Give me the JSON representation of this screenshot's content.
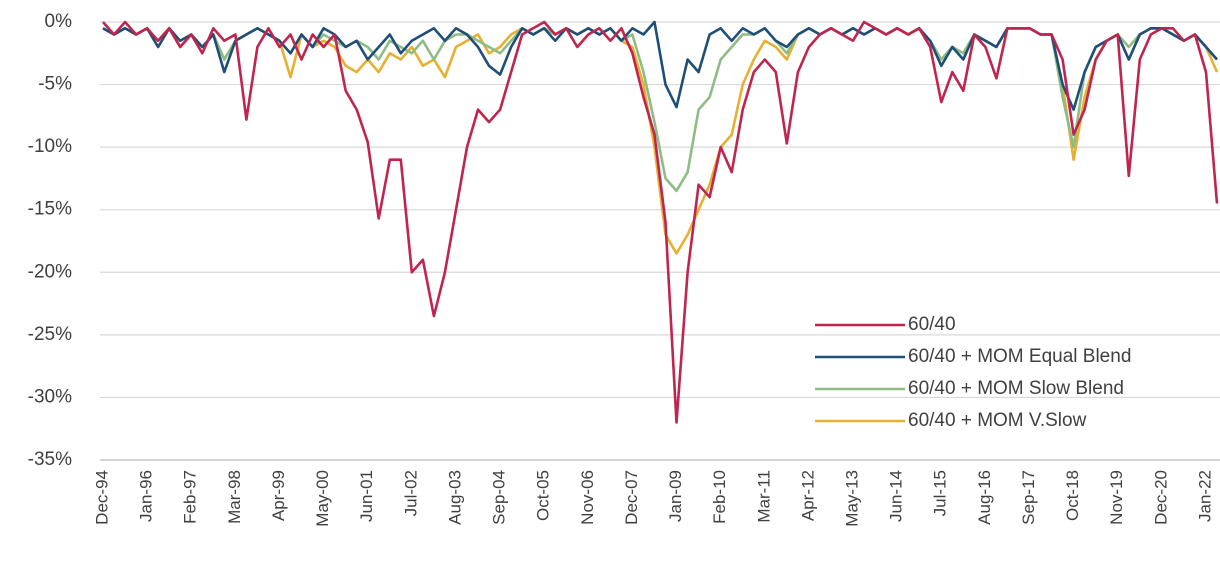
{
  "chart_data": {
    "type": "line",
    "categories": [
      "Dec-94",
      null,
      null,
      null,
      "Jan-96",
      null,
      null,
      null,
      "Feb-97",
      null,
      null,
      null,
      "Mar-98",
      null,
      null,
      null,
      "Apr-99",
      null,
      null,
      null,
      "May-00",
      null,
      null,
      null,
      "Jun-01",
      null,
      null,
      null,
      "Jul-02",
      null,
      null,
      null,
      "Aug-03",
      null,
      null,
      null,
      "Sep-04",
      null,
      null,
      null,
      "Oct-05",
      null,
      null,
      null,
      "Nov-06",
      null,
      null,
      null,
      "Dec-07",
      null,
      null,
      null,
      "Jan-09",
      null,
      null,
      null,
      "Feb-10",
      null,
      null,
      null,
      "Mar-11",
      null,
      null,
      null,
      "Apr-12",
      null,
      null,
      null,
      "May-13",
      null,
      null,
      null,
      "Jun-14",
      null,
      null,
      null,
      "Jul-15",
      null,
      null,
      null,
      "Aug-16",
      null,
      null,
      null,
      "Sep-17",
      null,
      null,
      null,
      "Oct-18",
      null,
      null,
      null,
      "Nov-19",
      null,
      null,
      null,
      "Dec-20",
      null,
      null,
      null,
      "Jan-22",
      null
    ],
    "series": [
      {
        "name": "60/40",
        "color": "#c0254f",
        "values": [
          0,
          -1,
          0,
          -1,
          -0.5,
          -1.5,
          -0.5,
          -2,
          -1,
          -2.5,
          -0.5,
          -1.5,
          -1,
          -7.8,
          -2,
          -0.5,
          -2,
          -1,
          -3,
          -1,
          -2,
          -1,
          -5.5,
          -7,
          -9.6,
          -15.7,
          -11,
          -11,
          -20,
          -19,
          -23.5,
          -20,
          -15,
          -10,
          -7,
          -8,
          -7,
          -4,
          -1,
          -0.5,
          0,
          -1,
          -0.5,
          -2,
          -1,
          -0.5,
          -1.5,
          -0.5,
          -2.5,
          -6,
          -9,
          -16,
          -32,
          -20,
          -13,
          -14,
          -10,
          -12,
          -7,
          -4,
          -3,
          -4,
          -9.7,
          -4,
          -2,
          -1,
          -0.5,
          -1,
          -1.5,
          0,
          -0.5,
          -1,
          -0.5,
          -1,
          -0.5,
          -2,
          -6.4,
          -4,
          -5.5,
          -1,
          -2,
          -4.5,
          -0.5,
          -0.5,
          -0.5,
          -1,
          -1,
          -3,
          -9,
          -7,
          -3,
          -1.5,
          -1,
          -12.3,
          -3,
          -1,
          -0.5,
          -0.5,
          -1.5,
          -1,
          -4,
          -14.5
        ]
      },
      {
        "name": "60/40 + MOM Equal Blend",
        "color": "#1f4e79",
        "values": [
          -0.5,
          -1,
          -0.5,
          -1,
          -0.5,
          -2,
          -0.5,
          -1.5,
          -1,
          -2,
          -1,
          -4,
          -1.5,
          -1,
          -0.5,
          -1,
          -1.5,
          -2.5,
          -1,
          -2,
          -0.5,
          -1,
          -2,
          -1.5,
          -3,
          -2,
          -1,
          -2.5,
          -1.5,
          -1,
          -0.5,
          -1.5,
          -0.5,
          -1,
          -2,
          -3.5,
          -4.2,
          -2,
          -0.5,
          -1,
          -0.5,
          -1.5,
          -0.5,
          -1,
          -0.5,
          -1,
          -0.5,
          -1.5,
          -0.5,
          -1,
          0,
          -5,
          -6.8,
          -3,
          -4,
          -1,
          -0.5,
          -1.5,
          -0.5,
          -1,
          -0.5,
          -1.5,
          -2,
          -1,
          -0.5,
          -1,
          -0.5,
          -1,
          -0.5,
          -1,
          -0.5,
          -1,
          -0.5,
          -1,
          -0.5,
          -1.5,
          -3.5,
          -2,
          -3,
          -1,
          -1.5,
          -2,
          -0.5,
          -0.5,
          -0.5,
          -1,
          -1,
          -5,
          -7,
          -4,
          -2,
          -1.5,
          -1,
          -3,
          -1,
          -0.5,
          -0.5,
          -1,
          -1.5,
          -1,
          -2,
          -3
        ]
      },
      {
        "name": "60/40 + MOM Slow Blend",
        "color": "#8fbc84",
        "values": [
          -0.5,
          -1,
          -0.5,
          -1,
          -0.5,
          -1.5,
          -0.5,
          -2,
          -1,
          -2,
          -1,
          -3,
          -1.5,
          -1,
          -0.5,
          -1,
          -1.5,
          -2.5,
          -1,
          -2,
          -1,
          -1.5,
          -2,
          -1.5,
          -2,
          -3,
          -1.5,
          -2,
          -2.5,
          -1.5,
          -3,
          -1.5,
          -1,
          -1,
          -1.5,
          -2,
          -2.5,
          -1.5,
          -0.5,
          -1,
          -0.5,
          -1,
          -0.5,
          -1,
          -0.5,
          -1,
          -0.5,
          -1.5,
          -1,
          -4,
          -8,
          -12.5,
          -13.5,
          -12,
          -7,
          -6,
          -3,
          -2,
          -1,
          -1,
          -0.5,
          -1.5,
          -2.5,
          -1,
          -0.5,
          -1,
          -0.5,
          -1,
          -0.5,
          -1,
          -0.5,
          -1,
          -0.5,
          -1,
          -0.5,
          -1.5,
          -3,
          -2,
          -2.5,
          -1,
          -1.5,
          -2,
          -0.5,
          -0.5,
          -0.5,
          -1,
          -1,
          -6,
          -10,
          -4,
          -2,
          -1.5,
          -1,
          -2,
          -1,
          -0.5,
          -0.5,
          -1,
          -1.5,
          -1,
          -2,
          -3
        ]
      },
      {
        "name": "60/40 + MOM V.Slow",
        "color": "#e8b030",
        "values": [
          -0.5,
          -1,
          -0.5,
          -1,
          -0.5,
          -1.5,
          -0.5,
          -2,
          -1,
          -2,
          -1,
          -3,
          -1.5,
          -1,
          -0.5,
          -1,
          -1.5,
          -4.4,
          -1,
          -2,
          -1.5,
          -2,
          -3.5,
          -4,
          -3,
          -4,
          -2.5,
          -3,
          -2,
          -3.5,
          -3,
          -4.4,
          -2,
          -1.5,
          -1,
          -2.5,
          -2,
          -1,
          -0.5,
          -1,
          -0.5,
          -1,
          -0.5,
          -1,
          -0.5,
          -1,
          -0.5,
          -1.5,
          -2,
          -5,
          -10,
          -17,
          -18.5,
          -17,
          -15,
          -13,
          -10,
          -9,
          -5,
          -3,
          -1.5,
          -2,
          -3,
          -1,
          -0.5,
          -1,
          -0.5,
          -1,
          -0.5,
          -1,
          -0.5,
          -1,
          -0.5,
          -1,
          -0.5,
          -1.5,
          -3,
          -2,
          -2.5,
          -1,
          -1.5,
          -2,
          -0.5,
          -0.5,
          -0.5,
          -1,
          -1,
          -5,
          -11,
          -6,
          -3,
          -1.5,
          -1,
          -3,
          -1,
          -0.5,
          -0.5,
          -1,
          -1.5,
          -1,
          -2,
          -4
        ]
      }
    ],
    "ylim": [
      -35,
      0
    ],
    "yticks": [
      {
        "value": 0,
        "label": "0%"
      },
      {
        "value": -5,
        "label": "-5%"
      },
      {
        "value": -10,
        "label": "-10%"
      },
      {
        "value": -15,
        "label": "-15%"
      },
      {
        "value": -20,
        "label": "-20%"
      },
      {
        "value": -25,
        "label": "-25%"
      },
      {
        "value": -30,
        "label": "-30%"
      },
      {
        "value": -35,
        "label": "-35%"
      }
    ],
    "grid": true,
    "legend": "lower right"
  }
}
